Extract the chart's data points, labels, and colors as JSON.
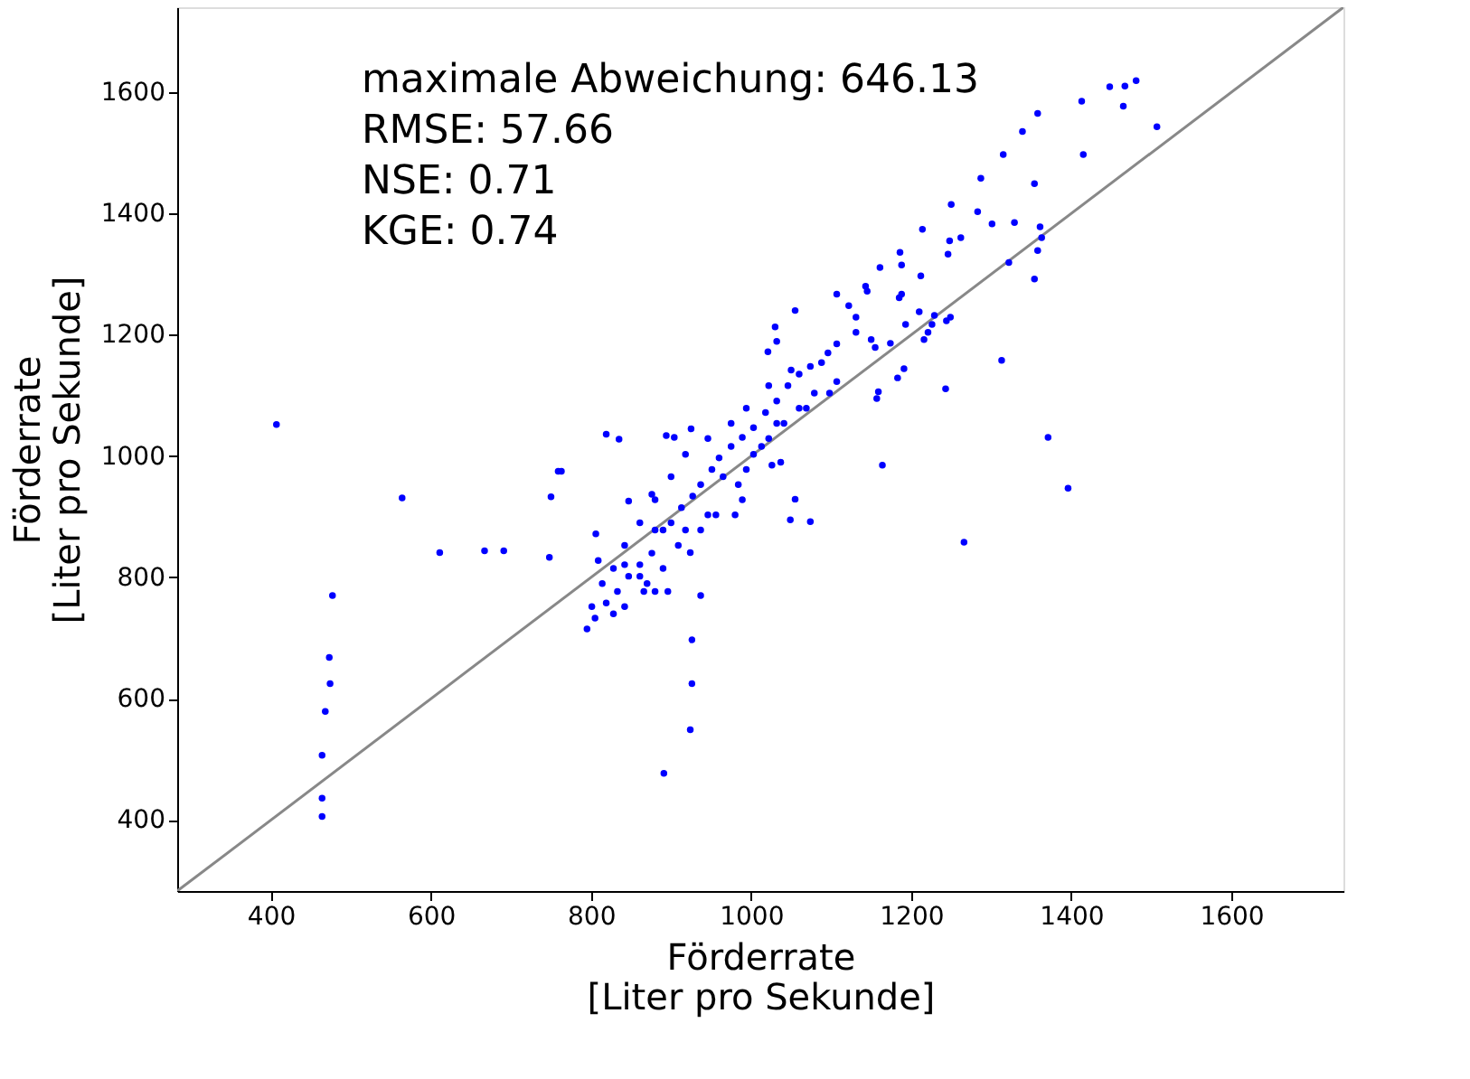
{
  "chart_data": {
    "type": "scatter",
    "xlabel": "Förderrate\n[Liter pro Sekunde]",
    "ylabel": "Förderrate\n[Liter pro Sekunde]",
    "xlim": [
      283,
      1740
    ],
    "ylim": [
      283,
      1740
    ],
    "xticks": [
      400,
      600,
      800,
      1000,
      1200,
      1400,
      1600
    ],
    "yticks": [
      400,
      600,
      800,
      1000,
      1200,
      1400,
      1600
    ],
    "grid": false,
    "annotations": [
      "maximale Abweichung: 646.13",
      "RMSE: 57.66",
      "NSE: 0.71",
      "KGE: 0.74"
    ],
    "series": [
      {
        "type": "line",
        "color": "#888888",
        "x": [
          283,
          1740
        ],
        "values": [
          283,
          1740
        ]
      },
      {
        "marker": "circle",
        "color": "#0000ff",
        "x": [
          407,
          564,
          611,
          667,
          691,
          748,
          750,
          759,
          763,
          819,
          835,
          477,
          473,
          474,
          468,
          464,
          464,
          464,
          806,
          809,
          847,
          876,
          894,
          904,
          925,
          866,
          880,
          896,
          937,
          926,
          926,
          924,
          891,
          924,
          980,
          989,
          1049,
          1074,
          1055,
          1037,
          1026,
          1266,
          1396,
          1371,
          1164,
          1313,
          1243,
          1159,
          1157,
          1183,
          1191,
          1216,
          1221,
          1249,
          1244,
          1354,
          1358,
          1361,
          1363,
          1322,
          1354,
          1329,
          1301,
          1283,
          1262,
          1248,
          1246,
          1250,
          1287,
          1315,
          1339,
          1358,
          1413,
          1415,
          1465,
          1467,
          1481,
          1507,
          1448,
          1214,
          1186,
          1188,
          1212,
          1185,
          1188,
          1161,
          1143,
          1145,
          1107,
          1122,
          1131,
          1174,
          1155,
          1193,
          1226,
          1229,
          1210,
          1055,
          1030,
          1032,
          1021,
          1096,
          1107,
          1131,
          1150,
          795,
          805,
          819,
          833,
          847,
          861,
          876,
          890,
          900,
          913,
          927,
          937,
          951,
          960,
          975,
          989,
          1003,
          1018,
          1032,
          1046,
          1060,
          1074,
          880,
          842,
          861,
          918,
          946,
          965,
          994,
          1013,
          1032,
          1060,
          1079,
          1098,
          1107,
          1088,
          1050,
          1022,
          994,
          975,
          946,
          918,
          900,
          880,
          861,
          842,
          828,
          814,
          801,
          828,
          842,
          870,
          890,
          909,
          937,
          956,
          984,
          1003,
          1022,
          1041,
          1069
        ],
        "values": [
          1052,
          931,
          841,
          844,
          844,
          833,
          933,
          975,
          975,
          1036,
          1028,
          770,
          668,
          625,
          579,
          507,
          436,
          406,
          872,
          828,
          926,
          937,
          1034,
          1031,
          1045,
          777,
          777,
          777,
          770,
          697,
          625,
          549,
          477,
          841,
          903,
          928,
          895,
          892,
          929,
          990,
          985,
          858,
          947,
          1031,
          985,
          1158,
          1111,
          1106,
          1095,
          1129,
          1144,
          1192,
          1204,
          1229,
          1223,
          1292,
          1339,
          1378,
          1360,
          1319,
          1449,
          1385,
          1383,
          1403,
          1360,
          1355,
          1333,
          1415,
          1458,
          1497,
          1535,
          1565,
          1585,
          1497,
          1577,
          1610,
          1619,
          1543,
          1609,
          1374,
          1336,
          1315,
          1297,
          1261,
          1267,
          1311,
          1280,
          1272,
          1267,
          1248,
          1229,
          1186,
          1179,
          1217,
          1217,
          1232,
          1238,
          1240,
          1213,
          1189,
          1172,
          1170,
          1185,
          1204,
          1192,
          715,
          733,
          758,
          777,
          802,
          821,
          840,
          878,
          890,
          915,
          934,
          953,
          978,
          997,
          1016,
          1031,
          1047,
          1072,
          1091,
          1116,
          1135,
          1148,
          878,
          821,
          802,
          878,
          903,
          966,
          978,
          1016,
          1054,
          1079,
          1104,
          1104,
          1123,
          1154,
          1142,
          1116,
          1079,
          1054,
          1029,
          1003,
          966,
          928,
          890,
          853,
          815,
          790,
          752,
          740,
          752,
          790,
          815,
          853,
          878,
          903,
          953,
          1003,
          1029,
          1054,
          1079
        ]
      }
    ]
  }
}
